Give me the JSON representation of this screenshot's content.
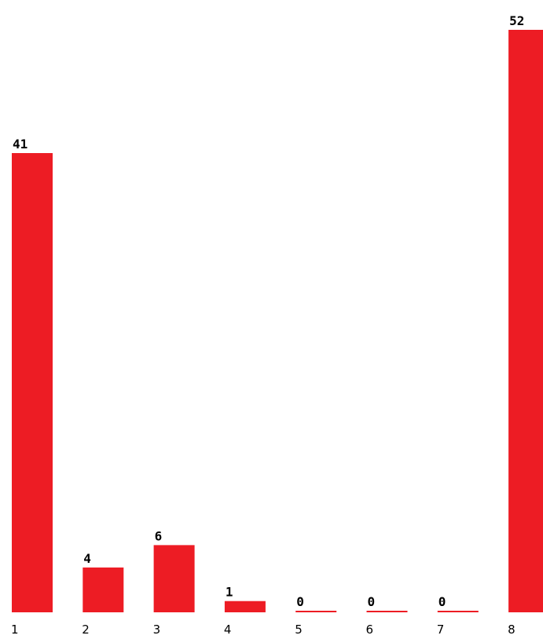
{
  "chart_data": {
    "type": "bar",
    "categories": [
      "1",
      "2",
      "3",
      "4",
      "5",
      "6",
      "7",
      "8"
    ],
    "values": [
      41,
      4,
      6,
      1,
      0,
      0,
      0,
      52
    ],
    "data_labels": [
      "41",
      "4",
      "6",
      "1",
      "0",
      "0",
      "0",
      "52"
    ],
    "title": "",
    "xlabel": "",
    "ylabel": "",
    "ylim": [
      0,
      52
    ],
    "grid": false,
    "legend": "none",
    "bar_color": "#ed1c24"
  }
}
